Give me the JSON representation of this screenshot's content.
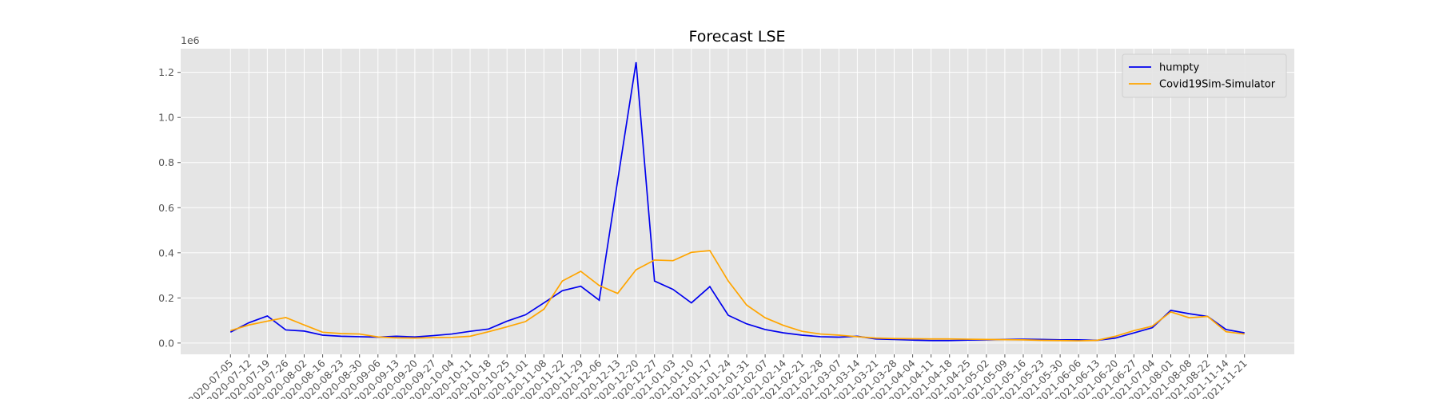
{
  "chart_data": {
    "type": "line",
    "title": "Forecast LSE",
    "y_offset_label": "1e6",
    "categories": [
      "2020-07-05",
      "2020-07-12",
      "2020-07-19",
      "2020-07-26",
      "2020-08-02",
      "2020-08-16",
      "2020-08-23",
      "2020-08-30",
      "2020-09-06",
      "2020-09-13",
      "2020-09-20",
      "2020-09-27",
      "2020-10-04",
      "2020-10-11",
      "2020-10-18",
      "2020-10-25",
      "2020-11-01",
      "2020-11-08",
      "2020-11-22",
      "2020-11-29",
      "2020-12-06",
      "2020-12-13",
      "2020-12-20",
      "2020-12-27",
      "2021-01-03",
      "2021-01-10",
      "2021-01-17",
      "2021-01-24",
      "2021-01-31",
      "2021-02-07",
      "2021-02-14",
      "2021-02-21",
      "2021-02-28",
      "2021-03-07",
      "2021-03-14",
      "2021-03-21",
      "2021-03-28",
      "2021-04-04",
      "2021-04-11",
      "2021-04-18",
      "2021-04-25",
      "2021-05-02",
      "2021-05-09",
      "2021-05-16",
      "2021-05-23",
      "2021-05-30",
      "2021-06-06",
      "2021-06-13",
      "2021-06-20",
      "2021-06-27",
      "2021-07-04",
      "2021-08-01",
      "2021-08-08",
      "2021-08-22",
      "2021-11-14",
      "2021-11-21"
    ],
    "series": [
      {
        "name": "humpty",
        "color": "#0000ee",
        "values": [
          48000,
          90000,
          120000,
          58000,
          53000,
          35000,
          30000,
          28000,
          26000,
          30000,
          27000,
          33000,
          40000,
          52000,
          62000,
          97000,
          125000,
          178000,
          232000,
          252000,
          190000,
          720000,
          1245000,
          275000,
          238000,
          178000,
          250000,
          123000,
          85000,
          60000,
          45000,
          35000,
          28000,
          26000,
          30000,
          18000,
          16000,
          13000,
          11000,
          11000,
          13000,
          14000,
          16000,
          17000,
          16000,
          14000,
          14000,
          12000,
          22000,
          45000,
          68000,
          145000,
          130000,
          118000,
          60000,
          45000
        ]
      },
      {
        "name": "Covid19Sim-Simulator",
        "color": "#ffa500",
        "values": [
          55000,
          80000,
          97000,
          113000,
          80000,
          48000,
          42000,
          40000,
          27000,
          23000,
          22000,
          24000,
          25000,
          30000,
          50000,
          72000,
          95000,
          150000,
          275000,
          318000,
          255000,
          220000,
          325000,
          368000,
          365000,
          402000,
          410000,
          275000,
          168000,
          112000,
          78000,
          52000,
          40000,
          35000,
          28000,
          22000,
          20000,
          19000,
          18000,
          18000,
          17000,
          16000,
          15000,
          14000,
          12000,
          11000,
          10000,
          12000,
          30000,
          55000,
          75000,
          138000,
          112000,
          118000,
          50000,
          40000
        ]
      }
    ],
    "ylim": [
      -50000,
      1305000
    ],
    "yticks": [
      {
        "value": 0,
        "label": "0.0"
      },
      {
        "value": 200000,
        "label": "0.2"
      },
      {
        "value": 400000,
        "label": "0.4"
      },
      {
        "value": 600000,
        "label": "0.6"
      },
      {
        "value": 800000,
        "label": "0.8"
      },
      {
        "value": 1000000,
        "label": "1.0"
      },
      {
        "value": 1200000,
        "label": "1.2"
      }
    ],
    "grid": true,
    "legend": "upper right"
  }
}
